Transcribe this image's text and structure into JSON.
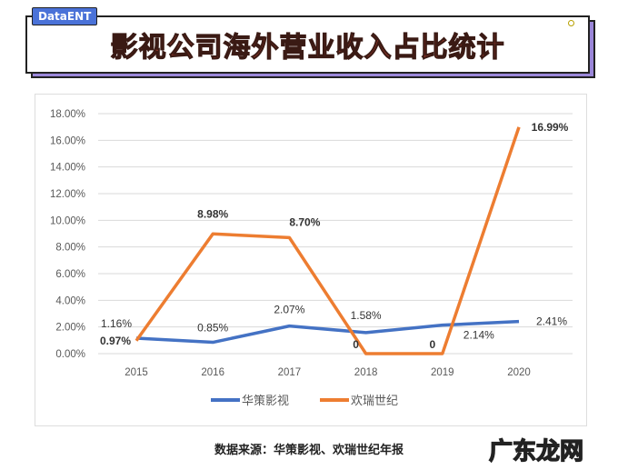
{
  "header": {
    "tag": "DataENT",
    "title": "影视公司海外营业收入占比统计"
  },
  "chart_data": {
    "type": "line",
    "title": "",
    "categories": [
      "2015",
      "2016",
      "2017",
      "2018",
      "2019",
      "2020"
    ],
    "ylim": [
      0,
      18
    ],
    "yticks": [
      "0.00%",
      "2.00%",
      "4.00%",
      "6.00%",
      "8.00%",
      "10.00%",
      "12.00%",
      "14.00%",
      "16.00%",
      "18.00%"
    ],
    "grid": true,
    "legend": "bottom",
    "series": [
      {
        "name": "华策影视",
        "color": "#4472c4",
        "values": [
          1.16,
          0.85,
          2.07,
          1.58,
          2.14,
          2.41
        ],
        "labels": [
          "1.16%",
          "0.85%",
          "2.07%",
          "1.58%",
          "2.14%",
          "2.41%"
        ]
      },
      {
        "name": "欢瑞世纪",
        "color": "#ed7d31",
        "values": [
          0.97,
          8.98,
          8.7,
          0,
          0,
          16.99
        ],
        "labels": [
          "0.97%",
          "8.98%",
          "8.70%",
          "0",
          "0",
          "16.99%"
        ]
      }
    ]
  },
  "footer": {
    "source": "数据来源：华策影视、欢瑞世纪年报",
    "watermark": "广东龙网"
  }
}
